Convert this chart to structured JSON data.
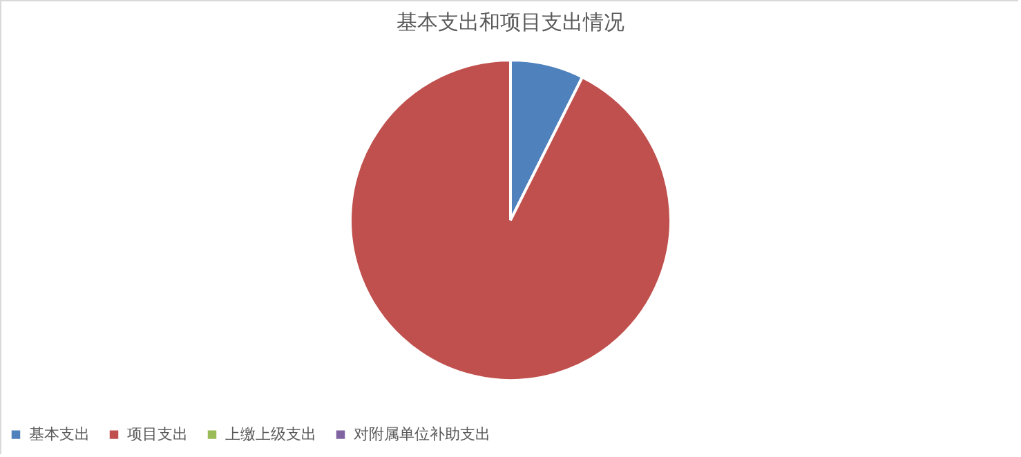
{
  "chart_data": {
    "type": "pie",
    "title": "基本支出和项目支出情况",
    "categories": [
      "基本支出",
      "项目支出",
      "上缴上级支出",
      "对附属单位补助支出"
    ],
    "values": [
      7.4,
      92.6,
      0,
      0
    ],
    "colors": [
      "#4f81bd",
      "#c0504d",
      "#9bbb59",
      "#8064a2"
    ],
    "legend": "bottom"
  }
}
